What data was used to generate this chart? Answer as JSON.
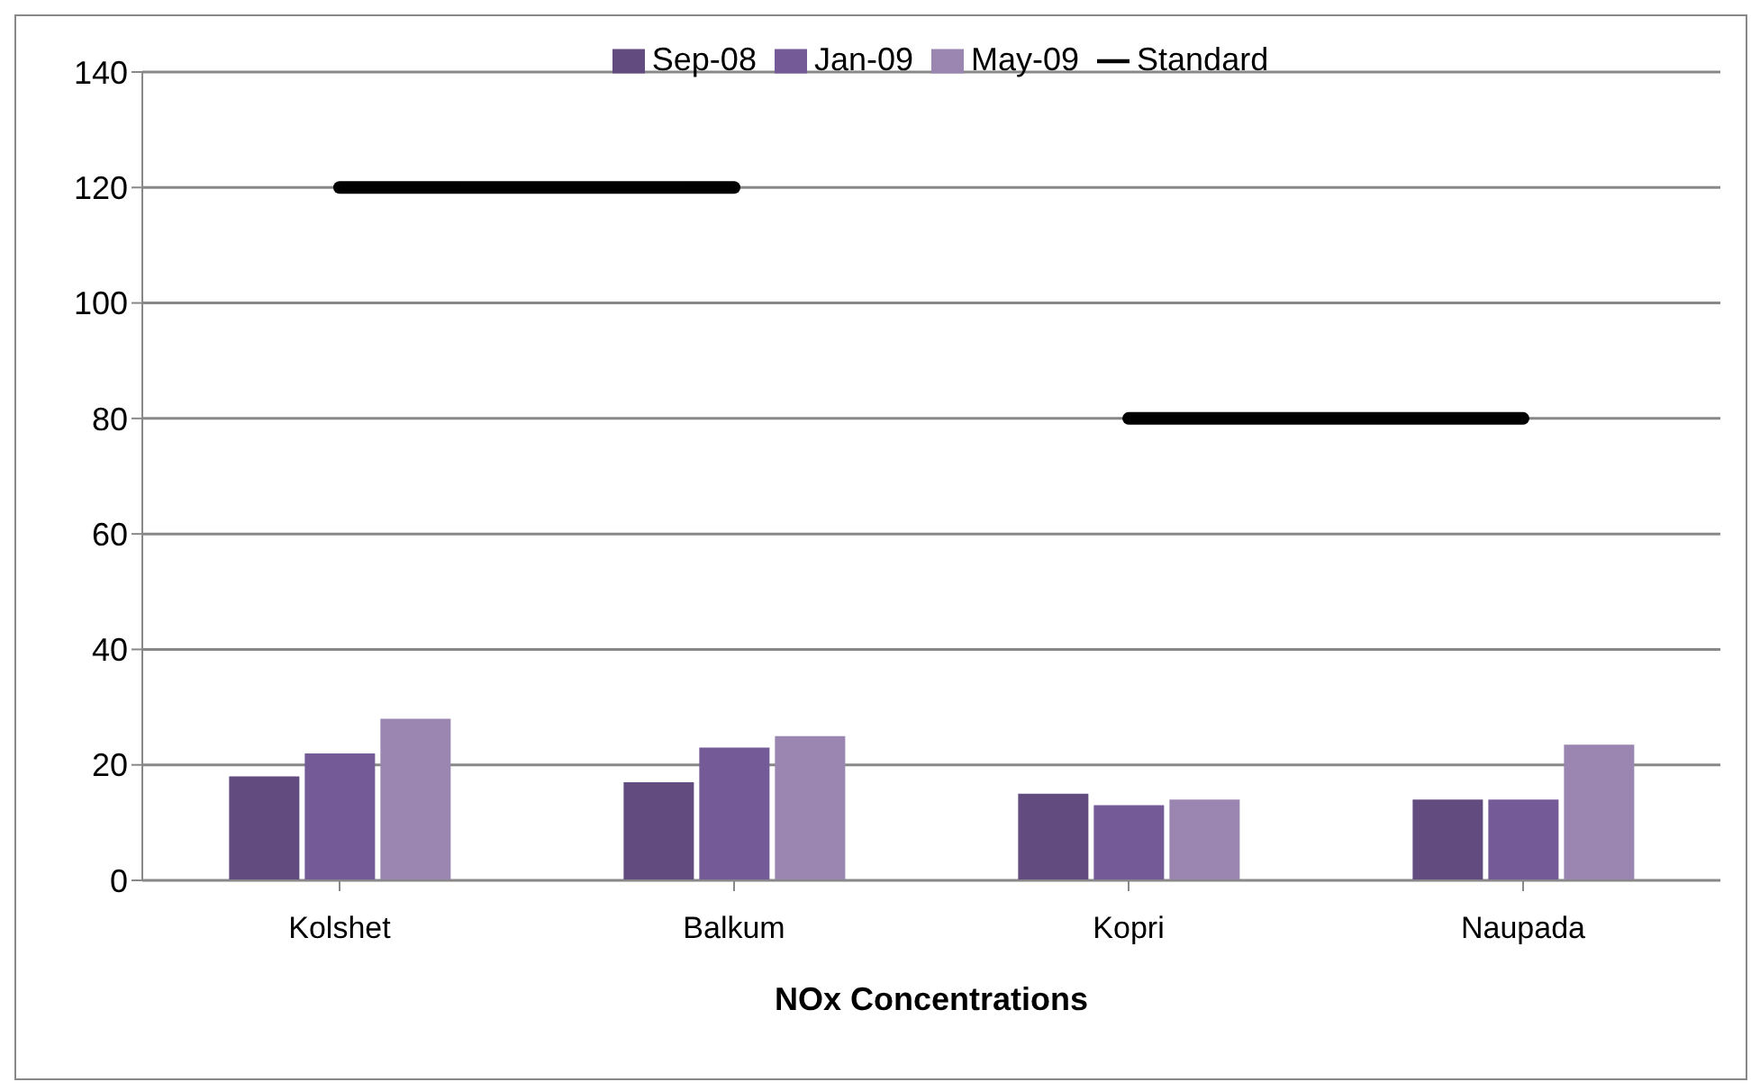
{
  "chart_data": {
    "type": "bar",
    "xlabel": "NOx Concentrations",
    "categories": [
      "Kolshet",
      "Balkum",
      "Kopri",
      "Naupada"
    ],
    "series": [
      {
        "name": "Sep-08",
        "color": "#624b7e",
        "values": [
          18,
          17,
          15,
          14
        ]
      },
      {
        "name": "Jan-09",
        "color": "#745a96",
        "values": [
          22,
          23,
          13,
          14
        ]
      },
      {
        "name": "May-09",
        "color": "#9a86b0",
        "values": [
          28,
          25,
          14,
          23.5
        ]
      },
      {
        "name": "Standard",
        "type": "line",
        "color": "#000000",
        "values": [
          120,
          120,
          null,
          null
        ]
      },
      {
        "type": "line",
        "color": "#000000",
        "values": [
          null,
          null,
          80,
          80
        ]
      }
    ],
    "ylim": [
      0,
      140
    ],
    "yticks": [
      0,
      20,
      40,
      60,
      80,
      100,
      120,
      140
    ],
    "grid": "y",
    "legend": "top",
    "marker": "none"
  }
}
